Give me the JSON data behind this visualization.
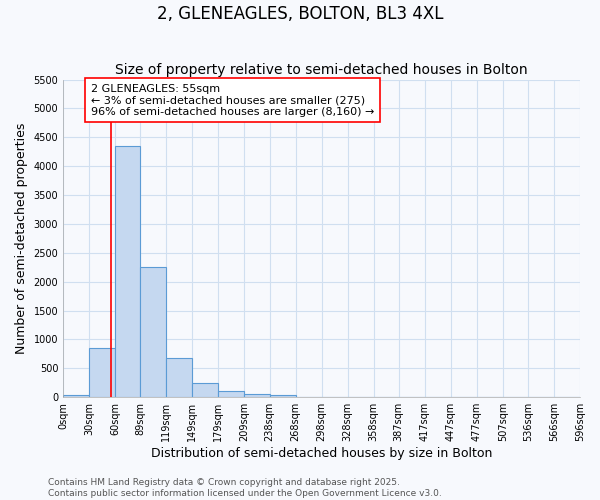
{
  "title": "2, GLENEAGLES, BOLTON, BL3 4XL",
  "subtitle": "Size of property relative to semi-detached houses in Bolton",
  "xlabel": "Distribution of semi-detached houses by size in Bolton",
  "ylabel": "Number of semi-detached properties",
  "bin_edges": [
    0,
    30,
    60,
    89,
    119,
    149,
    179,
    209,
    238,
    268,
    298,
    328,
    358,
    387,
    417,
    447,
    477,
    507,
    536,
    566,
    596
  ],
  "bar_heights": [
    30,
    850,
    4350,
    2250,
    680,
    250,
    100,
    50,
    30,
    10,
    5,
    3,
    2,
    2,
    2,
    2,
    2,
    2,
    2,
    2
  ],
  "bar_color": "#c5d8f0",
  "bar_edge_color": "#5b9bd5",
  "ylim": [
    0,
    5500
  ],
  "yticks": [
    0,
    500,
    1000,
    1500,
    2000,
    2500,
    3000,
    3500,
    4000,
    4500,
    5000,
    5500
  ],
  "red_line_x": 55,
  "annotation_text": "2 GLENEAGLES: 55sqm\n← 3% of semi-detached houses are smaller (275)\n96% of semi-detached houses are larger (8,160) →",
  "footer_line1": "Contains HM Land Registry data © Crown copyright and database right 2025.",
  "footer_line2": "Contains public sector information licensed under the Open Government Licence v3.0.",
  "bg_color": "#f7f9fd",
  "plot_bg_color": "#f7f9fd",
  "grid_color": "#d0dff0",
  "title_fontsize": 12,
  "subtitle_fontsize": 10,
  "axis_label_fontsize": 9,
  "tick_fontsize": 7,
  "annotation_fontsize": 8,
  "footer_fontsize": 6.5
}
